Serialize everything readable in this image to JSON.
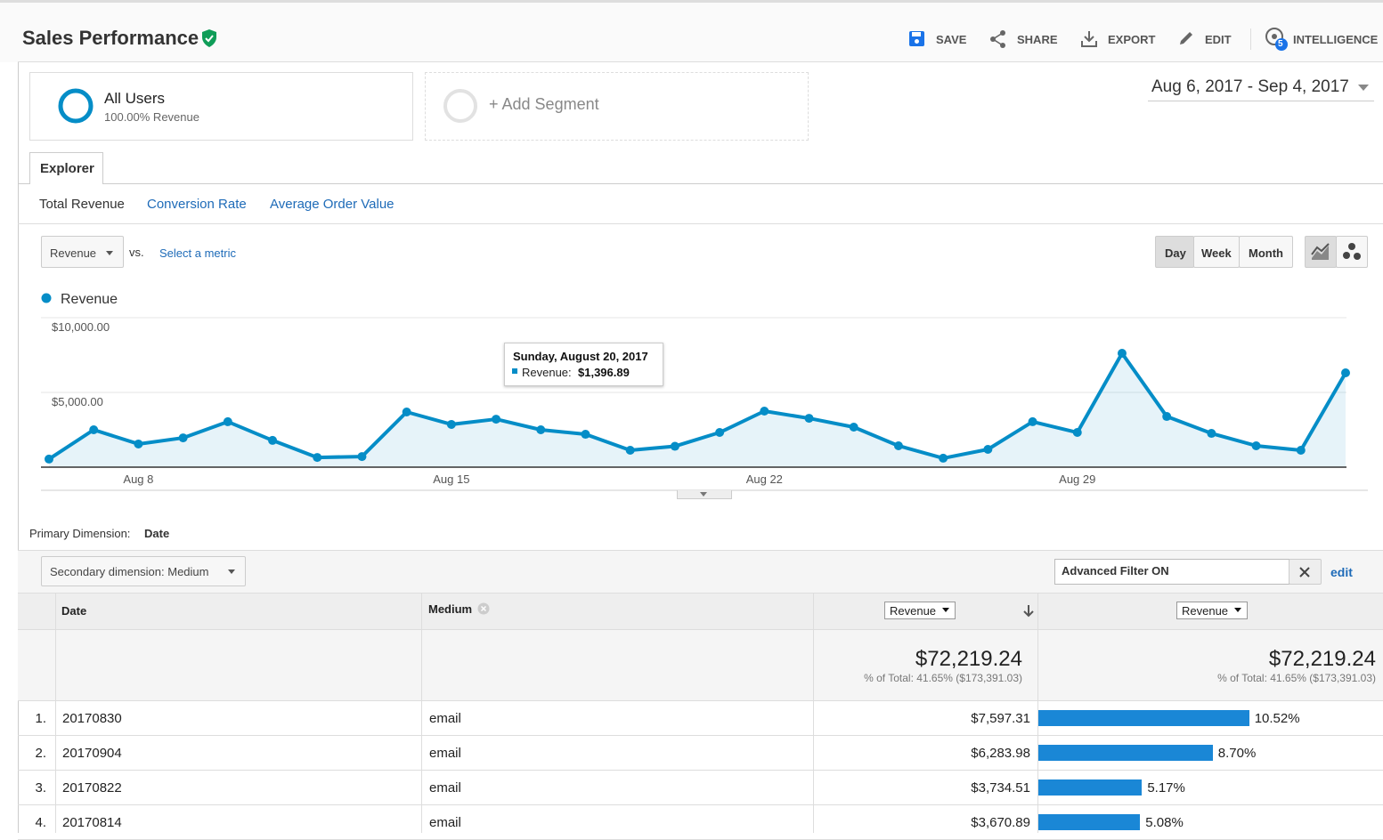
{
  "header": {
    "title": "Sales Performance",
    "actions": [
      "SAVE",
      "SHARE",
      "EXPORT",
      "EDIT",
      "INTELLIGENCE"
    ],
    "badge": "5"
  },
  "segments": {
    "primary": {
      "name": "All Users",
      "detail": "100.00% Revenue"
    },
    "add": "+ Add Segment"
  },
  "date_range": "Aug 6, 2017 - Sep 4, 2017",
  "tabs": [
    "Explorer"
  ],
  "metric_tabs": [
    "Total Revenue",
    "Conversion Rate",
    "Average Order Value"
  ],
  "controls": {
    "metric": "Revenue",
    "vs": "vs.",
    "select_metric": "Select a metric",
    "periods": [
      "Day",
      "Week",
      "Month"
    ]
  },
  "chart_data": {
    "type": "line",
    "categories": [
      null,
      null,
      "Aug 8",
      null,
      null,
      null,
      null,
      null,
      null,
      "Aug 15",
      null,
      null,
      null,
      null,
      null,
      null,
      "Aug 22",
      null,
      null,
      null,
      null,
      null,
      null,
      "Aug 29",
      null,
      null,
      null,
      null,
      null,
      null
    ],
    "series": [
      {
        "name": "Revenue",
        "color": "#058dc7",
        "values": [
          540,
          2500,
          1550,
          1960,
          3040,
          1790,
          650,
          710,
          3690,
          2860,
          3210,
          2500,
          2200,
          1130,
          1396.89,
          2320,
          3750,
          3270,
          2680,
          1430,
          600,
          1190,
          3040,
          2320,
          7620,
          3390,
          2260,
          1430,
          1130,
          6310
        ]
      }
    ],
    "ylim": [
      0,
      10000
    ],
    "yticks": [
      {
        "value": 5000,
        "label": "$5,000.00"
      },
      {
        "value": 10000,
        "label": "$10,000.00"
      }
    ],
    "grid": true,
    "tooltip": {
      "title": "Sunday, August 20, 2017",
      "label": "Revenue:",
      "value": "$1,396.89"
    }
  },
  "table": {
    "primary_dimension_label": "Primary Dimension:",
    "primary_dimension": "Date",
    "secondary_dimension": "Secondary dimension: Medium",
    "filter": "Advanced Filter ON",
    "filter_edit": "edit",
    "columns": [
      "Date",
      "Medium",
      "Revenue",
      "Revenue"
    ],
    "totals": [
      {
        "value": "$72,219.24",
        "detail": "% of Total: 41.65% ($173,391.03)"
      },
      {
        "value": "$72,219.24",
        "detail": "% of Total: 41.65% ($173,391.03)"
      }
    ],
    "rows": [
      {
        "rank": "1.",
        "date": "20170830",
        "medium": "email",
        "revenue": "$7,597.31",
        "share": 10.52,
        "share_label": "10.52%"
      },
      {
        "rank": "2.",
        "date": "20170904",
        "medium": "email",
        "revenue": "$6,283.98",
        "share": 8.7,
        "share_label": "8.70%"
      },
      {
        "rank": "3.",
        "date": "20170822",
        "medium": "email",
        "revenue": "$3,734.51",
        "share": 5.17,
        "share_label": "5.17%"
      },
      {
        "rank": "4.",
        "date": "20170814",
        "medium": "email",
        "revenue": "$3,670.89",
        "share": 5.08,
        "share_label": "5.08%"
      }
    ]
  }
}
